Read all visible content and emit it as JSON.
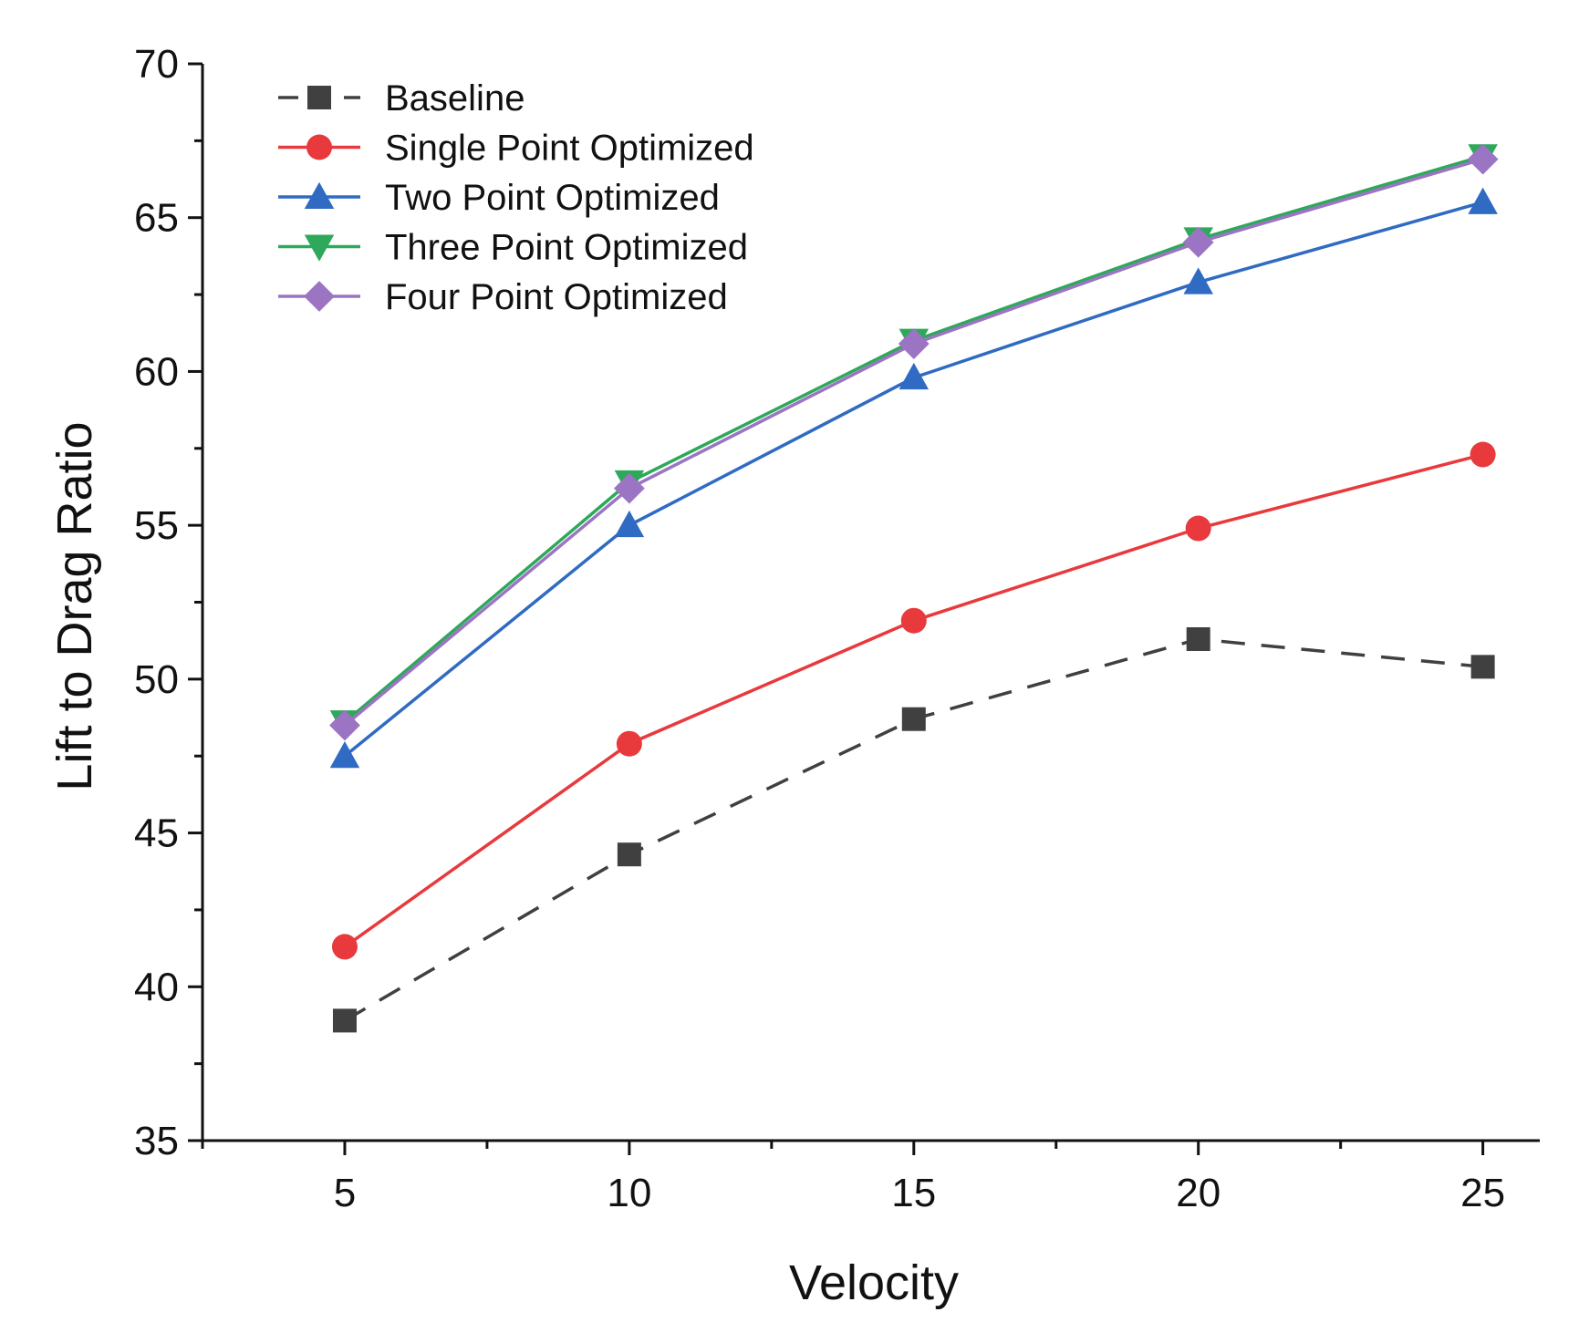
{
  "chart_data": {
    "type": "line",
    "title": "",
    "xlabel": "Velocity",
    "ylabel": "Lift to Drag Ratio",
    "x": [
      5,
      10,
      15,
      20,
      25
    ],
    "xlim": [
      2.5,
      26
    ],
    "ylim": [
      35,
      70
    ],
    "xticks": [
      5,
      10,
      15,
      20,
      25
    ],
    "yticks": [
      35,
      40,
      45,
      50,
      55,
      60,
      65,
      70
    ],
    "legend_position": "top-left",
    "grid": false,
    "series": [
      {
        "name": "Baseline",
        "color": "#404040",
        "marker": "square",
        "dash": true,
        "values": [
          38.9,
          44.3,
          48.7,
          51.3,
          50.4
        ]
      },
      {
        "name": "Single Point Optimized",
        "color": "#e8393c",
        "marker": "circle",
        "dash": false,
        "values": [
          41.3,
          47.9,
          51.9,
          54.9,
          57.3
        ]
      },
      {
        "name": "Two Point Optimized",
        "color": "#2f6bc2",
        "marker": "triangle-up",
        "dash": false,
        "values": [
          47.5,
          55.0,
          59.8,
          62.9,
          65.5
        ]
      },
      {
        "name": "Three Point Optimized",
        "color": "#2ea85a",
        "marker": "triangle-down",
        "dash": false,
        "values": [
          48.6,
          56.4,
          61.0,
          64.3,
          67.0
        ]
      },
      {
        "name": "Four Point Optimized",
        "color": "#9b74c3",
        "marker": "diamond",
        "dash": false,
        "values": [
          48.5,
          56.2,
          60.9,
          64.2,
          66.9
        ]
      }
    ]
  }
}
